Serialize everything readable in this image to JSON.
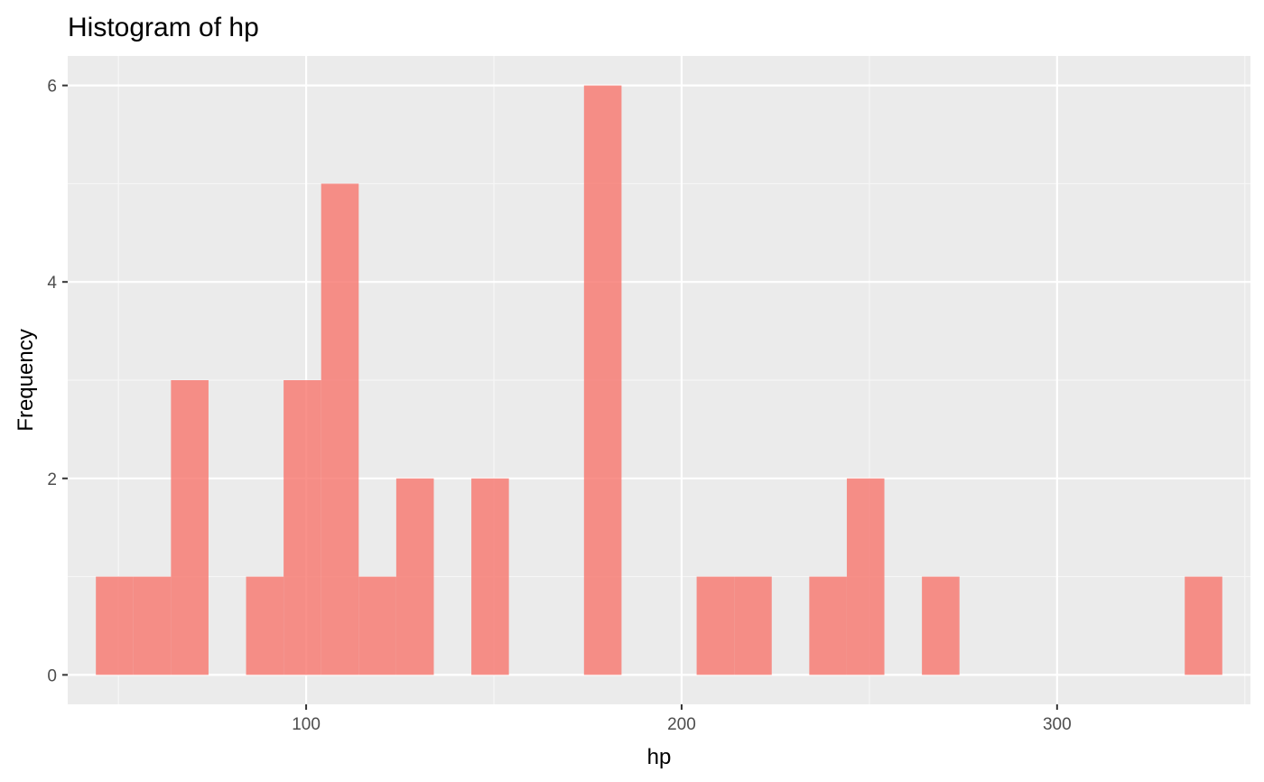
{
  "chart_data": {
    "type": "bar",
    "title": "Histogram of hp",
    "xlabel": "hp",
    "ylabel": "Frequency",
    "bin_width": 10,
    "bins": [
      {
        "x0": 44,
        "x1": 54,
        "count": 1
      },
      {
        "x0": 54,
        "x1": 64,
        "count": 1
      },
      {
        "x0": 64,
        "x1": 74,
        "count": 3
      },
      {
        "x0": 74,
        "x1": 84,
        "count": 0
      },
      {
        "x0": 84,
        "x1": 94,
        "count": 1
      },
      {
        "x0": 94,
        "x1": 104,
        "count": 3
      },
      {
        "x0": 104,
        "x1": 114,
        "count": 5
      },
      {
        "x0": 114,
        "x1": 124,
        "count": 1
      },
      {
        "x0": 124,
        "x1": 134,
        "count": 2
      },
      {
        "x0": 134,
        "x1": 144,
        "count": 0
      },
      {
        "x0": 144,
        "x1": 154,
        "count": 2
      },
      {
        "x0": 154,
        "x1": 164,
        "count": 0
      },
      {
        "x0": 164,
        "x1": 174,
        "count": 0
      },
      {
        "x0": 174,
        "x1": 184,
        "count": 6
      },
      {
        "x0": 184,
        "x1": 194,
        "count": 0
      },
      {
        "x0": 194,
        "x1": 204,
        "count": 0
      },
      {
        "x0": 204,
        "x1": 214,
        "count": 1
      },
      {
        "x0": 214,
        "x1": 224,
        "count": 1
      },
      {
        "x0": 224,
        "x1": 234,
        "count": 0
      },
      {
        "x0": 234,
        "x1": 244,
        "count": 1
      },
      {
        "x0": 244,
        "x1": 254,
        "count": 2
      },
      {
        "x0": 254,
        "x1": 264,
        "count": 0
      },
      {
        "x0": 264,
        "x1": 274,
        "count": 1
      },
      {
        "x0": 274,
        "x1": 284,
        "count": 0
      },
      {
        "x0": 284,
        "x1": 294,
        "count": 0
      },
      {
        "x0": 294,
        "x1": 304,
        "count": 0
      },
      {
        "x0": 304,
        "x1": 314,
        "count": 0
      },
      {
        "x0": 314,
        "x1": 324,
        "count": 0
      },
      {
        "x0": 324,
        "x1": 334,
        "count": 0
      },
      {
        "x0": 334,
        "x1": 344,
        "count": 1
      }
    ],
    "xlim": [
      36.5,
      351.5
    ],
    "ylim": [
      -0.3,
      6.3
    ],
    "x_ticks": [
      100,
      200,
      300
    ],
    "x_tick_labels": [
      "100",
      "200",
      "300"
    ],
    "x_minor_ticks": [
      50,
      150,
      250,
      350
    ],
    "y_ticks": [
      0,
      2,
      4,
      6
    ],
    "y_tick_labels": [
      "0",
      "2",
      "4",
      "6"
    ],
    "y_minor_ticks": [
      1,
      3,
      5
    ],
    "grid": true,
    "legend": "none",
    "colors": {
      "bar_fill": "#F8766D",
      "bar_opacity": 0.8,
      "panel_background": "#EBEBEB",
      "grid_major": "#FFFFFF",
      "grid_minor": "#F6F6F6"
    }
  }
}
